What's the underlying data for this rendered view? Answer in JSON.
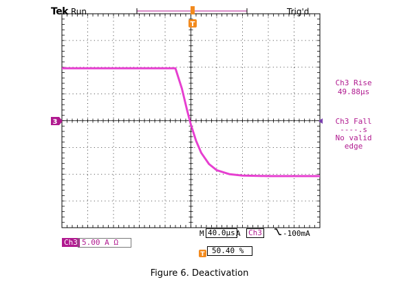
{
  "header": {
    "brand": "Tek",
    "state": "Run",
    "trigger_status": "Trig'd"
  },
  "markers": {
    "trigger_position": "T",
    "channel_ground": "3"
  },
  "measurements": {
    "rise_label": "Ch3 Rise",
    "rise_value": "49.88µs",
    "fall_label": "Ch3 Fall",
    "fall_value": "----.s",
    "fall_msg_line1": "No valid",
    "fall_msg_line2": "edge"
  },
  "timebase": {
    "prefix": "M",
    "value": "40.0µs"
  },
  "trigger": {
    "prefix": "A",
    "source": "Ch3",
    "slope_symbol": "⌐",
    "level": "-100mA",
    "position_icon": "T",
    "position": "50.40 %"
  },
  "channel": {
    "badge": "Ch3",
    "scale": "5.00 A Ω"
  },
  "caption": "Figure 6. Deactivation",
  "colors": {
    "trace": "#e63fd0",
    "accent": "#b0198f",
    "grid": "#000000"
  },
  "chart_data": {
    "type": "line",
    "title": "",
    "xlabel": "",
    "ylabel": "",
    "x_divisions": 10,
    "y_divisions": 8,
    "xlim": [
      0,
      10
    ],
    "ylim": [
      -4,
      4
    ],
    "grid": true,
    "series": [
      {
        "x": [
          0,
          3,
          4.4,
          4.65,
          4.85,
          5.0,
          5.2,
          5.4,
          5.7,
          6.0,
          6.5,
          7.0,
          8.0,
          10
        ],
        "y": [
          1.96,
          1.96,
          1.96,
          1.2,
          0.4,
          -0.15,
          -0.75,
          -1.2,
          -1.62,
          -1.85,
          -2.0,
          -2.05,
          -2.07,
          -2.07
        ]
      }
    ]
  }
}
